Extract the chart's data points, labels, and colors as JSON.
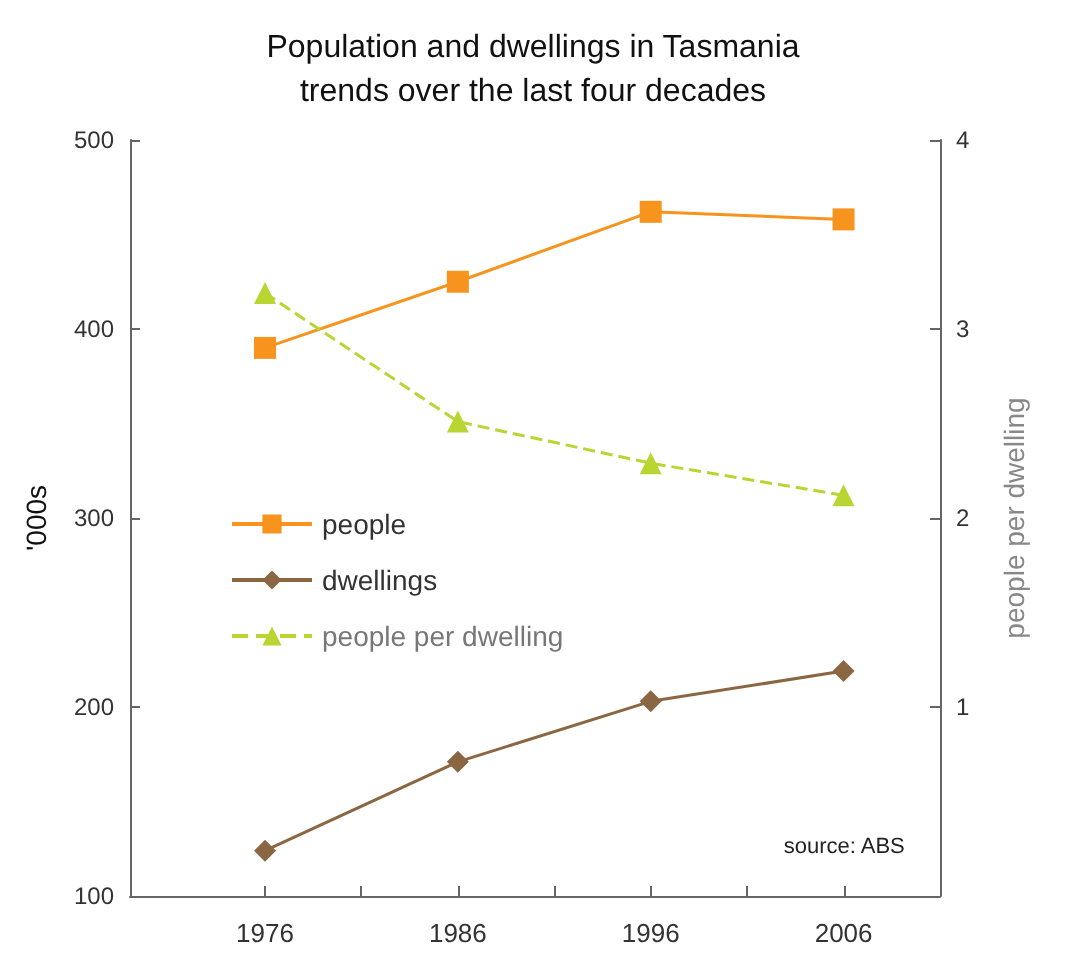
{
  "chart_data": {
    "type": "line",
    "title": "Population and dwellings in Tasmania\ntrends over the last four decades",
    "ylabel": "'000s",
    "y2label": "people per dwelling",
    "x": [
      1976,
      1986,
      1996,
      2006
    ],
    "series": [
      {
        "name": "people",
        "color": "#f7941d",
        "values": [
          390,
          425,
          462,
          458
        ],
        "marker": "square",
        "line_style": "solid"
      },
      {
        "name": "dwellings",
        "color": "#8b6642",
        "values": [
          124,
          171,
          203,
          219
        ],
        "marker": "diamond",
        "line_style": "solid"
      },
      {
        "name": "people per dwelling",
        "color": "#b9d531",
        "values": [
          3.19,
          2.51,
          2.29,
          2.12
        ],
        "marker": "triangle",
        "line_style": "dashed",
        "axis": "y2"
      }
    ],
    "xlim": [
      1969,
      2011
    ],
    "xticks": [
      1976,
      {
        "value": 1981,
        "label": null
      },
      1986,
      {
        "value": 1991,
        "label": null
      },
      1996,
      {
        "value": 2001,
        "label": null
      },
      2006
    ],
    "ylim": [
      100,
      500
    ],
    "yticks": [
      100,
      200,
      300,
      400,
      500
    ],
    "y2lim": [
      0,
      4
    ],
    "y2ticks": [
      1,
      2,
      3,
      4
    ],
    "legend": "left",
    "grid": false,
    "annotations": [
      "source: ABS"
    ]
  }
}
